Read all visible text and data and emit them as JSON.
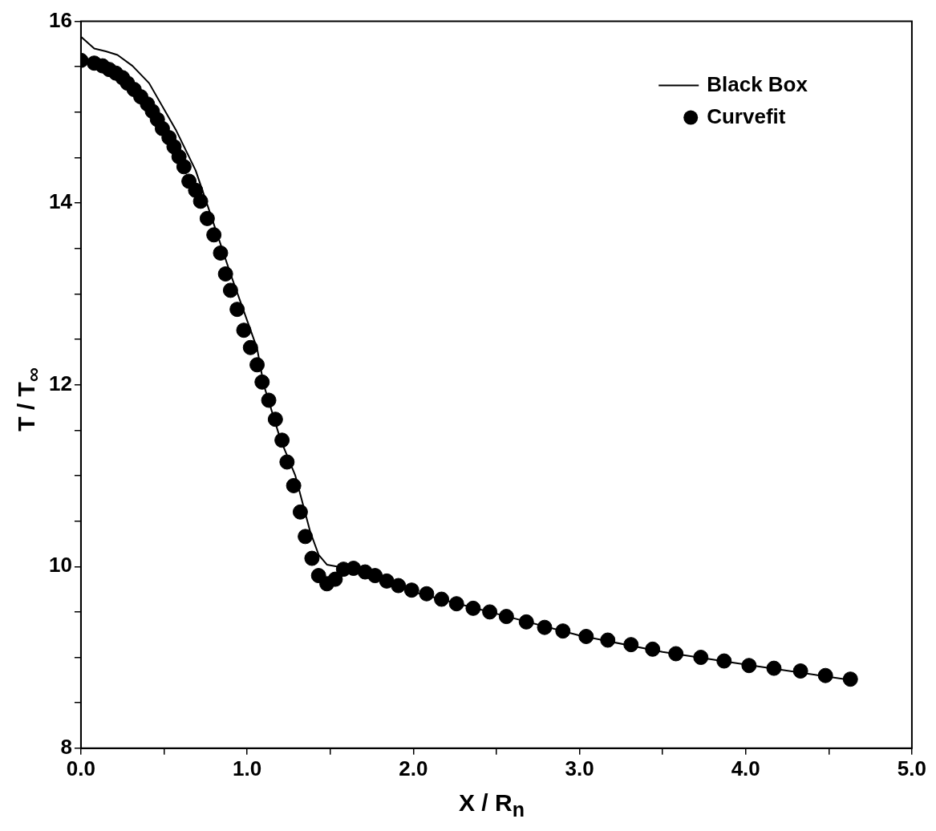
{
  "chart_data": {
    "type": "line",
    "xlabel": "X / R$_{n}$",
    "ylabel": "T / T$_{∞}$",
    "legend": "top right",
    "xlim": [
      0,
      5
    ],
    "ylim": [
      8,
      16
    ],
    "xticks": [
      {
        "value": 0,
        "label": "0.0"
      },
      {
        "value": 0.5,
        "label": null
      },
      {
        "value": 1,
        "label": "1.0"
      },
      {
        "value": 1.5,
        "label": null
      },
      {
        "value": 2,
        "label": "2.0"
      },
      {
        "value": 2.5,
        "label": null
      },
      {
        "value": 3,
        "label": "3.0"
      },
      {
        "value": 3.5,
        "label": null
      },
      {
        "value": 4,
        "label": "4.0"
      },
      {
        "value": 4.5,
        "label": null
      },
      {
        "value": 5,
        "label": "5.0"
      }
    ],
    "yticks": [
      8,
      {
        "value": 8.5,
        "label": null
      },
      {
        "value": 9,
        "label": null
      },
      {
        "value": 9.5,
        "label": null
      },
      10,
      {
        "value": 10.5,
        "label": null
      },
      {
        "value": 11,
        "label": null
      },
      {
        "value": 11.5,
        "label": null
      },
      12,
      {
        "value": 12.5,
        "label": null
      },
      {
        "value": 13,
        "label": null
      },
      {
        "value": 13.5,
        "label": null
      },
      14,
      {
        "value": 14.5,
        "label": null
      },
      {
        "value": 15,
        "label": null
      },
      {
        "value": 15.5,
        "label": null
      },
      16
    ],
    "series": [
      {
        "name": "Black Box",
        "type": "line",
        "color": "#000000",
        "marker": "none",
        "x": [
          0,
          0.08,
          0.15,
          0.22,
          0.31,
          0.41,
          0.57,
          0.69,
          0.77,
          0.9,
          1.06,
          1.1,
          1.2,
          1.29,
          1.38,
          1.43,
          1.48,
          1.54,
          1.64,
          2.0,
          2.5,
          3.0,
          3.5,
          4.0,
          4.63
        ],
        "values": [
          15.83,
          15.7,
          15.67,
          15.63,
          15.51,
          15.32,
          14.81,
          14.36,
          13.93,
          13.22,
          12.4,
          12.0,
          11.4,
          11.0,
          10.38,
          10.13,
          10.02,
          10.0,
          9.97,
          9.72,
          9.48,
          9.24,
          9.06,
          8.92,
          8.75
        ]
      },
      {
        "name": "Curvefit",
        "type": "scatter",
        "color": "#000000",
        "marker": "circle",
        "x": [
          0,
          0.08,
          0.13,
          0.17,
          0.21,
          0.25,
          0.28,
          0.32,
          0.36,
          0.4,
          0.43,
          0.46,
          0.49,
          0.53,
          0.56,
          0.59,
          0.62,
          0.65,
          0.69,
          0.72,
          0.76,
          0.8,
          0.84,
          0.87,
          0.9,
          0.94,
          0.98,
          1.02,
          1.06,
          1.09,
          1.13,
          1.17,
          1.21,
          1.24,
          1.28,
          1.32,
          1.35,
          1.39,
          1.43,
          1.48,
          1.53,
          1.58,
          1.64,
          1.71,
          1.77,
          1.84,
          1.91,
          1.99,
          2.08,
          2.17,
          2.26,
          2.36,
          2.46,
          2.56,
          2.68,
          2.79,
          2.9,
          3.04,
          3.17,
          3.31,
          3.44,
          3.58,
          3.73,
          3.87,
          4.02,
          4.17,
          4.33,
          4.48,
          4.63
        ],
        "values": [
          15.57,
          15.54,
          15.51,
          15.47,
          15.43,
          15.38,
          15.32,
          15.25,
          15.17,
          15.09,
          15.01,
          14.92,
          14.82,
          14.72,
          14.62,
          14.51,
          14.4,
          14.24,
          14.14,
          14.02,
          13.83,
          13.65,
          13.45,
          13.22,
          13.04,
          12.83,
          12.6,
          12.41,
          12.22,
          12.03,
          11.83,
          11.62,
          11.39,
          11.15,
          10.89,
          10.6,
          10.33,
          10.09,
          9.9,
          9.81,
          9.86,
          9.97,
          9.98,
          9.94,
          9.9,
          9.84,
          9.79,
          9.74,
          9.7,
          9.64,
          9.59,
          9.54,
          9.5,
          9.45,
          9.39,
          9.33,
          9.29,
          9.23,
          9.19,
          9.14,
          9.09,
          9.04,
          9.0,
          8.96,
          8.91,
          8.88,
          8.85,
          8.8,
          8.76
        ]
      }
    ]
  }
}
